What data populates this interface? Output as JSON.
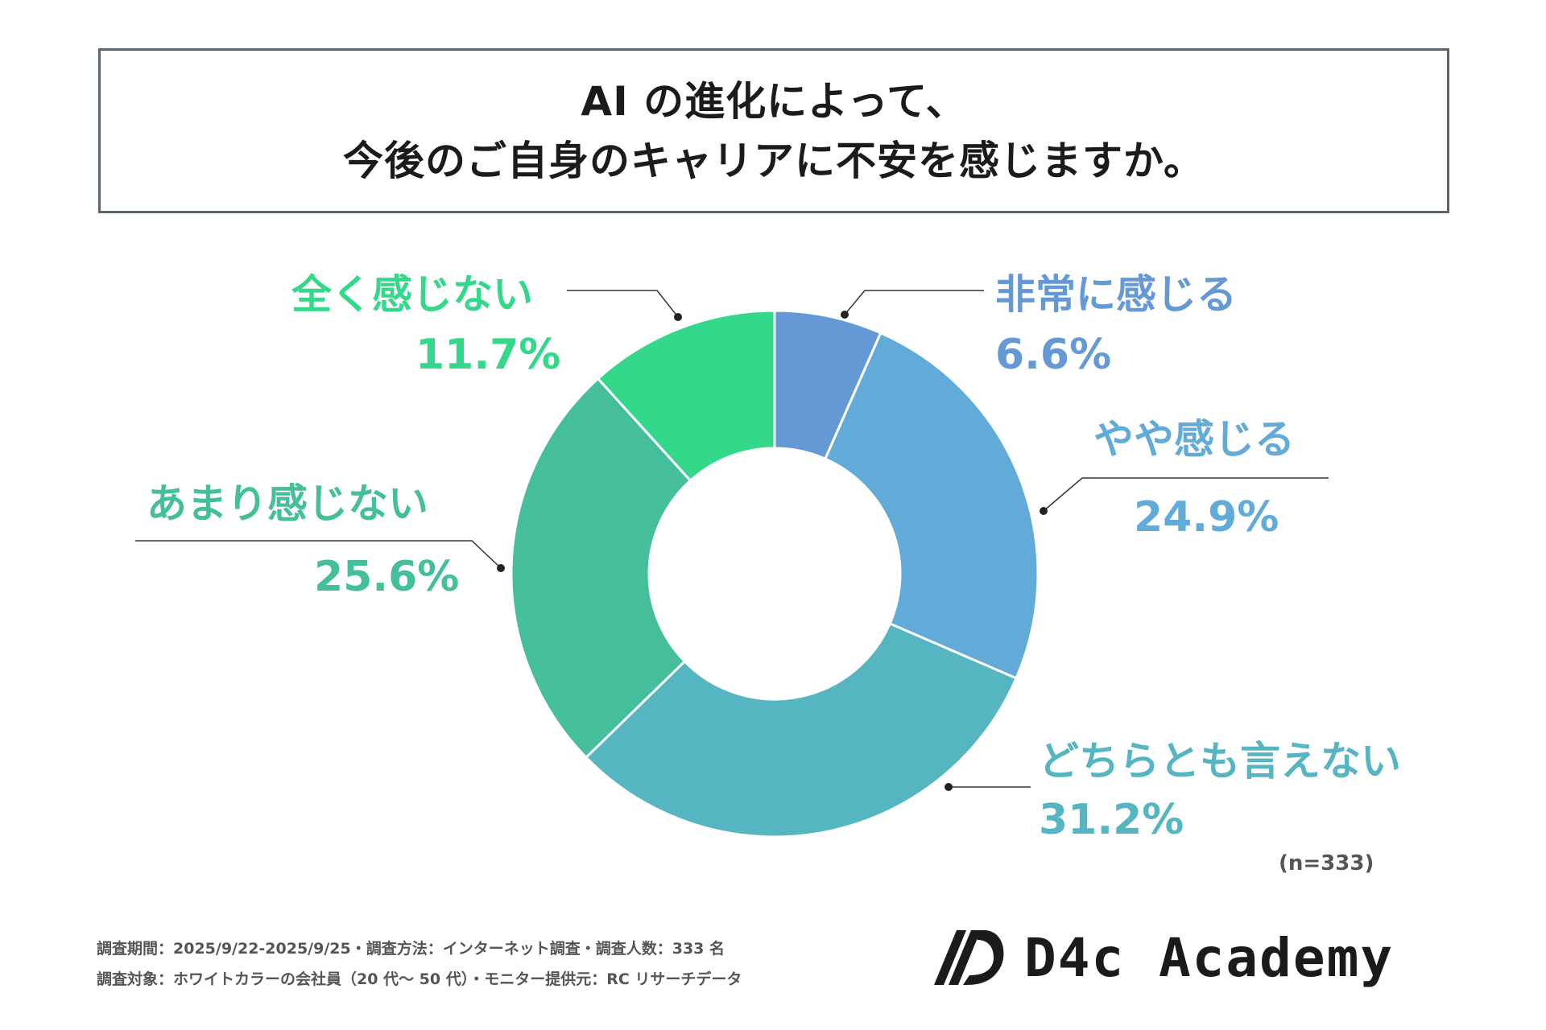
{
  "title": {
    "line1": "AI の進化によって、",
    "line2": "今後のご自身のキャリアに不安を感じますか。"
  },
  "chart_data": {
    "type": "pie",
    "variant": "donut",
    "title": "AI の進化によって、今後のご自身のキャリアに不安を感じますか。",
    "categories": [
      "非常に感じる",
      "やや感じる",
      "どちらとも言えない",
      "あまり感じない",
      "全く感じない"
    ],
    "values": [
      6.6,
      24.9,
      31.2,
      25.6,
      11.7
    ],
    "value_labels": [
      "6.6%",
      "24.9%",
      "31.2%",
      "25.6%",
      "11.7%"
    ],
    "colors": [
      "#6499d5",
      "#62abd8",
      "#55b5c0",
      "#45bf9b",
      "#34d88a"
    ],
    "unit": "%",
    "start": "top",
    "direction": "clockwise"
  },
  "sample_note": "(n=333)",
  "footer": {
    "line1": "調査期間：2025/9/22-2025/9/25・調査方法：インターネット調査・調査人数：333 名",
    "line2": "調査対象：ホワイトカラーの会社員（20 代〜 50 代）・モニター提供元：RC リサーチデータ"
  },
  "logo": {
    "text": "D4c Academy",
    "icon": "d4c-logo-icon"
  }
}
